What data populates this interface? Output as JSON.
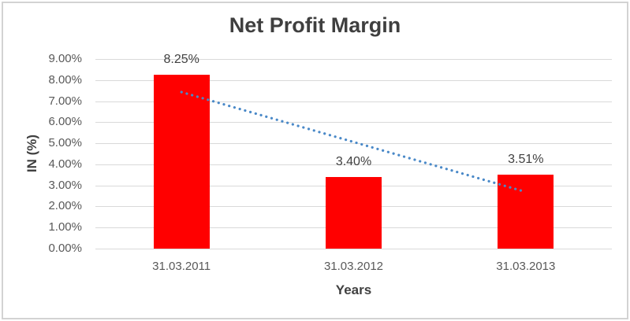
{
  "chart": {
    "title": "Net Profit Margin",
    "x_axis_title": "Years",
    "y_axis_title": "IN (%)"
  },
  "chart_data": {
    "type": "bar",
    "title": "Net Profit Margin",
    "categories": [
      "31.03.2011",
      "31.03.2012",
      "31.03.2013"
    ],
    "values": [
      8.25,
      3.4,
      3.51
    ],
    "data_labels": [
      "8.25%",
      "3.40%",
      "3.51%"
    ],
    "xlabel": "Years",
    "ylabel": "IN (%)",
    "ylim": [
      0,
      9
    ],
    "ytick_step": 1,
    "ytick_labels": [
      "0.00%",
      "1.00%",
      "2.00%",
      "3.00%",
      "4.00%",
      "5.00%",
      "6.00%",
      "7.00%",
      "8.00%",
      "9.00%"
    ],
    "grid": true,
    "legend": "none",
    "trendline": {
      "type": "linear",
      "style": "dotted",
      "color": "#4A89C8",
      "start_value": 7.43,
      "end_value": 2.69
    },
    "colors": {
      "bar": "#FF0000",
      "grid": "#D9D9D9",
      "tick_text": "#595959",
      "label_text": "#404040",
      "title_text": "#3F3F3F",
      "border": "#D3D3D3"
    }
  }
}
